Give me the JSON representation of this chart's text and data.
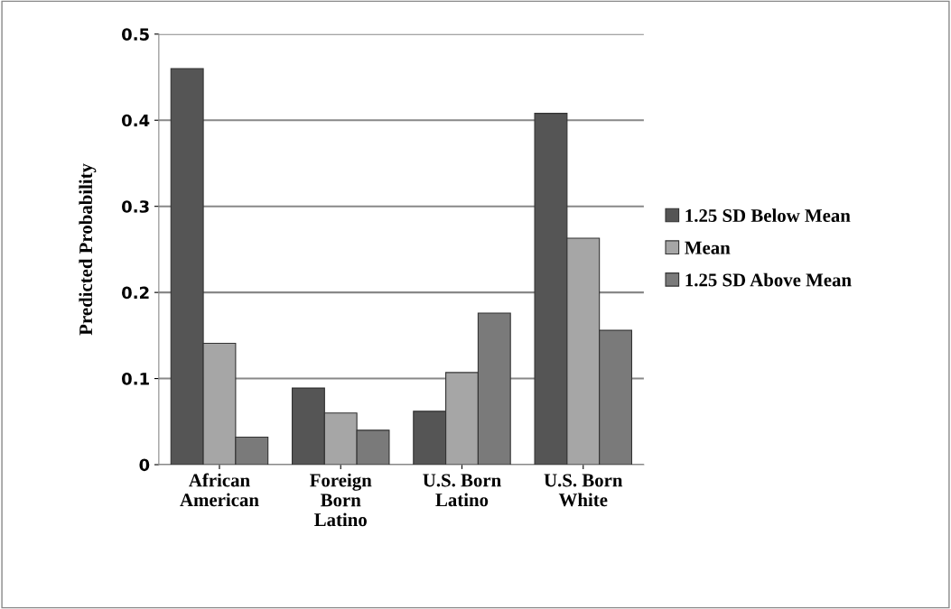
{
  "chart_data": {
    "type": "bar",
    "ylabel": "Predicted Probability",
    "categories": [
      "African\nAmerican",
      "Foreign\nBorn\nLatino",
      "U.S. Born\nLatino",
      "U.S. Born\nWhite"
    ],
    "series": [
      {
        "name": "1.25 SD Below Mean",
        "color": "#555555",
        "values": [
          0.46,
          0.089,
          0.062,
          0.408
        ]
      },
      {
        "name": "Mean",
        "color": "#a6a6a6",
        "values": [
          0.141,
          0.06,
          0.107,
          0.263
        ]
      },
      {
        "name": "1.25 SD Above Mean",
        "color": "#7a7a7a",
        "values": [
          0.032,
          0.04,
          0.176,
          0.156
        ]
      }
    ],
    "ylim": [
      0,
      0.5
    ],
    "yticks": [
      {
        "value": 0,
        "label": "0"
      },
      0.1,
      0.2,
      0.3,
      0.4,
      0.5
    ],
    "grid": "y",
    "legend": "right"
  }
}
